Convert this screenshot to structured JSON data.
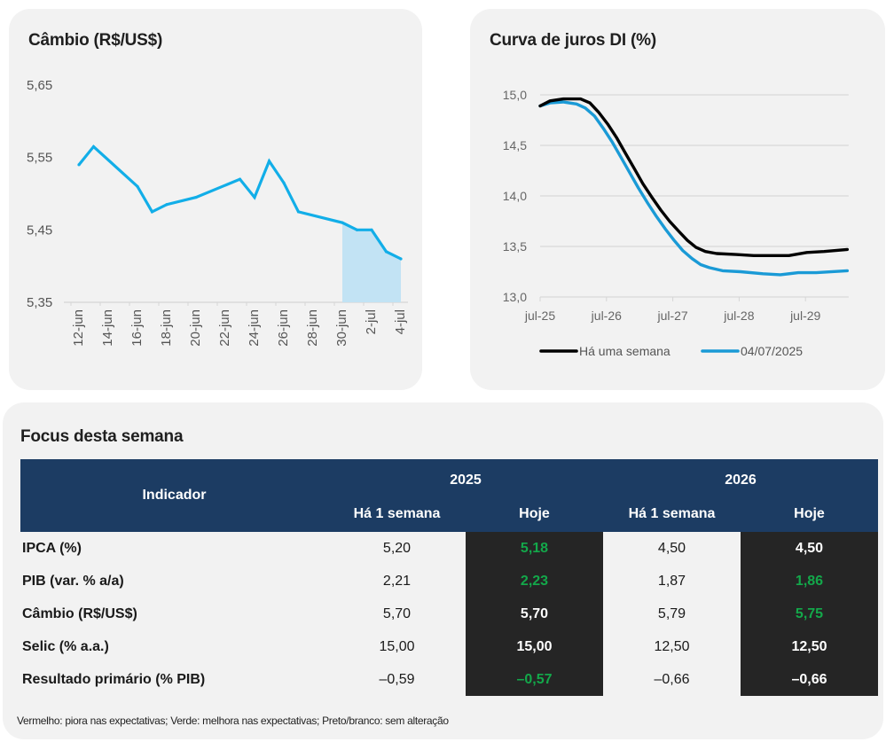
{
  "cambio": {
    "title": "Câmbio (R$/US$)",
    "y_ticks": [
      "5,65",
      "5,55",
      "5,45",
      "5,35"
    ],
    "x_ticks": [
      "12-jun",
      "14-jun",
      "16-jun",
      "18-jun",
      "20-jun",
      "22-jun",
      "24-jun",
      "26-jun",
      "28-jun",
      "30-jun",
      "2-jul",
      "4-jul"
    ],
    "line_color": "#12aee8",
    "shade_color": "#c2e3f4"
  },
  "di": {
    "title": "Curva de juros DI (%)",
    "y_ticks": [
      "15,0",
      "14,5",
      "14,0",
      "13,5",
      "13,0"
    ],
    "x_ticks": [
      "jul-25",
      "jul-26",
      "jul-27",
      "jul-28",
      "jul-29"
    ],
    "legend": [
      {
        "label": "Há uma semana",
        "color": "#000000"
      },
      {
        "label": "04/07/2025",
        "color": "#1a9ad6"
      }
    ]
  },
  "chart_data": [
    {
      "type": "line",
      "title": "Câmbio (R$/US$)",
      "xlabel": "",
      "ylabel": "",
      "ylim": [
        5.35,
        5.65
      ],
      "yticks": [
        5.35,
        5.45,
        5.55,
        5.65
      ],
      "xlim_days": [
        0,
        22.6
      ],
      "x_day_offset_label": "days since 12-jun",
      "x": [
        0,
        1,
        4,
        5,
        6,
        8,
        11,
        12,
        13,
        14,
        15,
        18,
        19,
        20,
        21,
        22
      ],
      "values": [
        5.54,
        5.565,
        5.51,
        5.475,
        5.485,
        5.495,
        5.52,
        5.495,
        5.545,
        5.515,
        5.475,
        5.46,
        5.45,
        5.45,
        5.42,
        5.41
      ],
      "highlight_from_day": 18,
      "grid": false,
      "legend": "none"
    },
    {
      "type": "line",
      "title": "Curva de juros DI (%)",
      "xlabel": "",
      "ylabel": "",
      "ylim": [
        13.0,
        15.0
      ],
      "yticks": [
        13.0,
        13.5,
        14.0,
        14.5,
        15.0
      ],
      "xlim_years_from_jul25": [
        0,
        4.65
      ],
      "grid": true,
      "legend": "bottom",
      "series": [
        {
          "name": "Há uma semana",
          "x": [
            0,
            0.15,
            0.35,
            0.61,
            0.75,
            0.88,
            1.02,
            1.15,
            1.28,
            1.42,
            1.55,
            1.68,
            1.82,
            1.95,
            2.09,
            2.22,
            2.35,
            2.49,
            2.66,
            2.95,
            3.22,
            3.49,
            3.75,
            4.02,
            4.28,
            4.63
          ],
          "values": [
            14.89,
            14.94,
            14.96,
            14.96,
            14.92,
            14.83,
            14.71,
            14.58,
            14.43,
            14.27,
            14.12,
            13.99,
            13.86,
            13.75,
            13.65,
            13.56,
            13.49,
            13.45,
            13.43,
            13.42,
            13.41,
            13.41,
            13.41,
            13.44,
            13.45,
            13.47
          ]
        },
        {
          "name": "04/07/2025",
          "x": [
            0,
            0.15,
            0.35,
            0.55,
            0.68,
            0.82,
            0.95,
            1.09,
            1.22,
            1.35,
            1.48,
            1.62,
            1.75,
            1.89,
            2.02,
            2.15,
            2.29,
            2.42,
            2.55,
            2.75,
            3.02,
            3.36,
            3.62,
            3.89,
            4.16,
            4.63
          ],
          "values": [
            14.89,
            14.92,
            14.93,
            14.91,
            14.87,
            14.79,
            14.67,
            14.53,
            14.38,
            14.23,
            14.08,
            13.93,
            13.8,
            13.67,
            13.56,
            13.46,
            13.38,
            13.32,
            13.29,
            13.26,
            13.25,
            13.23,
            13.22,
            13.24,
            13.24,
            13.26
          ]
        }
      ]
    },
    {
      "type": "table",
      "title": "Focus desta semana",
      "columns": [
        "Indicador",
        "2025 Há 1 semana",
        "2025 Hoje",
        "2026 Há 1 semana",
        "2026 Hoje"
      ],
      "rows": [
        [
          "IPCA (%)",
          "5,20",
          "5,18",
          "4,50",
          "4,50"
        ],
        [
          "PIB (var. % a/a)",
          "2,21",
          "2,23",
          "1,87",
          "1,86"
        ],
        [
          "Câmbio (R$/US$)",
          "5,70",
          "5,70",
          "5,79",
          "5,75"
        ],
        [
          "Selic (% a.a.)",
          "15,00",
          "15,00",
          "12,50",
          "12,50"
        ],
        [
          "Resultado primário (% PIB)",
          "-0,59",
          "-0,57",
          "-0,66",
          "-0,66"
        ]
      ]
    }
  ],
  "focus": {
    "title": "Focus desta semana",
    "header": {
      "indicator": "Indicador",
      "year1": "2025",
      "year2": "2026",
      "prev": "Há 1 semana",
      "today": "Hoje"
    },
    "rows": [
      {
        "label": "IPCA (%)",
        "v25_prev": "5,20",
        "v25_today": "5,18",
        "v25_today_status": "green",
        "v26_prev": "4,50",
        "v26_today": "4,50",
        "v26_today_status": "neutral"
      },
      {
        "label": "PIB (var. % a/a)",
        "v25_prev": "2,21",
        "v25_today": "2,23",
        "v25_today_status": "green",
        "v26_prev": "1,87",
        "v26_today": "1,86",
        "v26_today_status": "green"
      },
      {
        "label": "Câmbio (R$/US$)",
        "v25_prev": "5,70",
        "v25_today": "5,70",
        "v25_today_status": "neutral",
        "v26_prev": "5,79",
        "v26_today": "5,75",
        "v26_today_status": "green"
      },
      {
        "label": "Selic (% a.a.)",
        "v25_prev": "15,00",
        "v25_today": "15,00",
        "v25_today_status": "neutral",
        "v26_prev": "12,50",
        "v26_today": "12,50",
        "v26_today_status": "neutral"
      },
      {
        "label": "Resultado primário (% PIB)",
        "v25_prev": "–0,59",
        "v25_today": "–0,57",
        "v25_today_status": "green",
        "v26_prev": "–0,66",
        "v26_today": "–0,66",
        "v26_today_status": "neutral"
      }
    ],
    "note": "Vermelho: piora nas expectativas; Verde: melhora nas expectativas; Preto/branco: sem alteração",
    "colors": {
      "header_bg": "#1c3c63",
      "dark_cell": "#252525",
      "green": "#13a84a"
    }
  }
}
